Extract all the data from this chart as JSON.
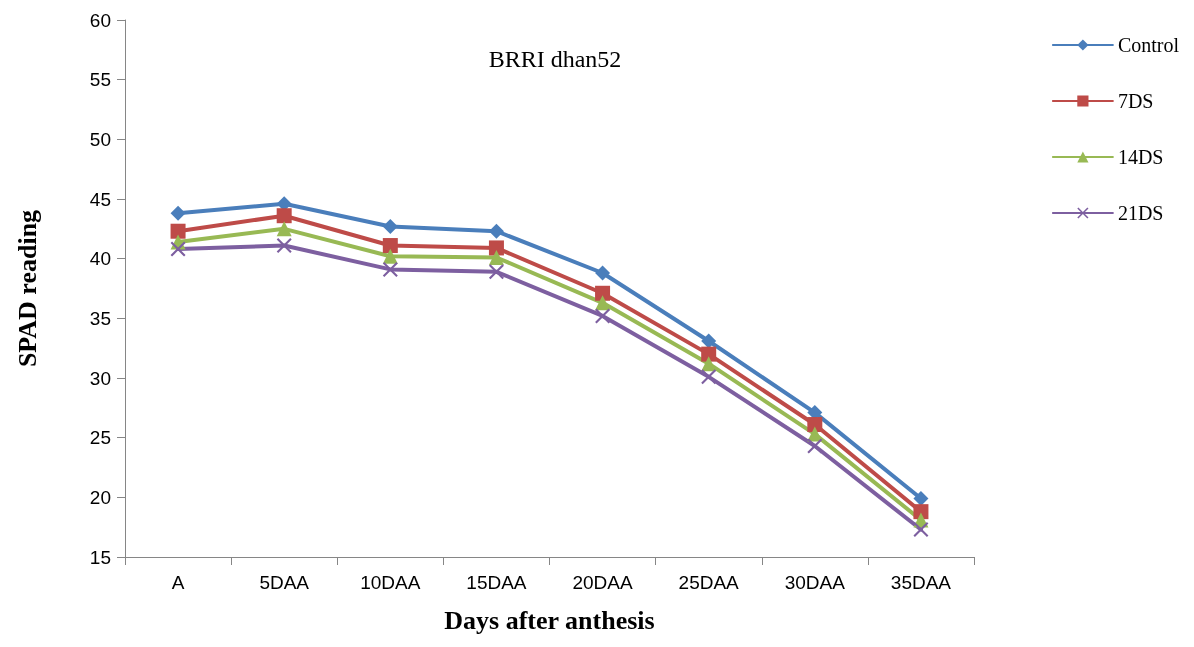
{
  "chart_data": {
    "type": "line",
    "title": "BRRI dhan52",
    "xlabel": "Days after anthesis",
    "ylabel": "SPAD reading",
    "categories": [
      "A",
      "5DAA",
      "10DAA",
      "15DAA",
      "20DAA",
      "25DAA",
      "30DAA",
      "35DAA"
    ],
    "series": [
      {
        "name": "Control",
        "color": "#4a7ebb",
        "marker": "diamond",
        "values": [
          43.8,
          44.6,
          42.7,
          42.3,
          38.8,
          33.1,
          27.1,
          19.9
        ]
      },
      {
        "name": "7DS",
        "color": "#be4b48",
        "marker": "square",
        "values": [
          42.3,
          43.6,
          41.1,
          40.9,
          37.1,
          32.0,
          26.1,
          18.8
        ]
      },
      {
        "name": "14DS",
        "color": "#98b954",
        "marker": "triangle",
        "values": [
          41.4,
          42.5,
          40.2,
          40.1,
          36.3,
          31.2,
          25.3,
          18.1
        ]
      },
      {
        "name": "21DS",
        "color": "#7d5fa0",
        "marker": "cross",
        "values": [
          40.8,
          41.1,
          39.1,
          38.9,
          35.2,
          30.1,
          24.3,
          17.3
        ]
      }
    ],
    "ylim": [
      15,
      60
    ],
    "yticks": [
      15,
      20,
      25,
      30,
      35,
      40,
      45,
      50,
      55,
      60
    ],
    "grid": false,
    "legend": "top right",
    "line_style": "solid"
  }
}
